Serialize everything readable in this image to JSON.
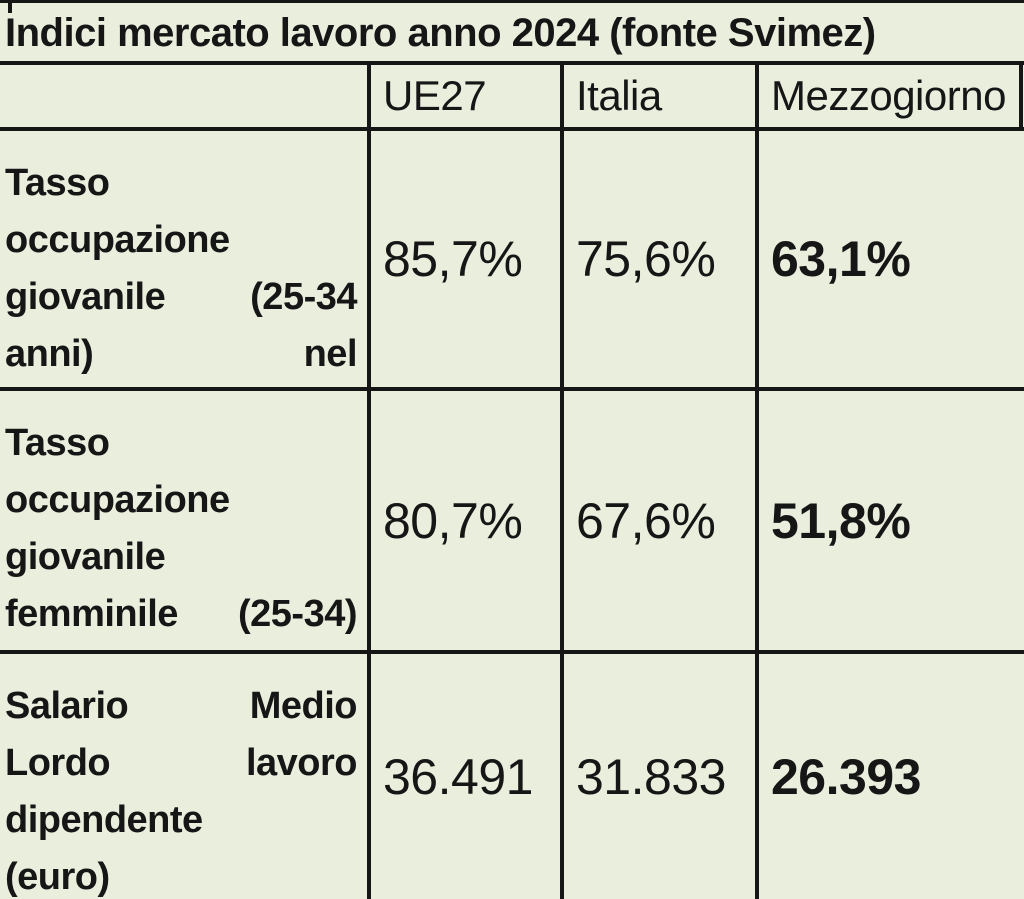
{
  "title": "Indici mercato lavoro anno 2024 (fonte Svimez)",
  "colors": {
    "background": "#e9eedd",
    "border": "#161616",
    "text": "#161616"
  },
  "chart_data": {
    "type": "table",
    "title": "Indici mercato lavoro anno 2024 (fonte Svimez)",
    "source": "Svimez",
    "year": "2024",
    "columns": [
      "UE27",
      "Italia",
      "Mezzogiorno"
    ],
    "rows": [
      {
        "label": "Tasso occupazione giovanile (25-34 anni) nel",
        "lines": [
          "Tasso",
          "occupazione",
          "giovanile (25-34",
          "anni) nel"
        ],
        "values": {
          "ue27": "85,7%",
          "italia": "75,6%",
          "mezzogiorno": "63,1%"
        }
      },
      {
        "label": "Tasso occupazione giovanile femminile (25-34)",
        "lines": [
          "Tasso",
          "occupazione",
          "giovanile",
          "femminile (25-34)"
        ],
        "values": {
          "ue27": "80,7%",
          "italia": "67,6%",
          "mezzogiorno": "51,8%"
        }
      },
      {
        "label": "Salario Medio Lordo lavoro dipendente (euro)",
        "lines": [
          "Salario Medio",
          "Lordo lavoro",
          "dipendente",
          "(euro)"
        ],
        "values": {
          "ue27": "36.491",
          "italia": "31.833",
          "mezzogiorno": "26.393"
        }
      }
    ]
  }
}
